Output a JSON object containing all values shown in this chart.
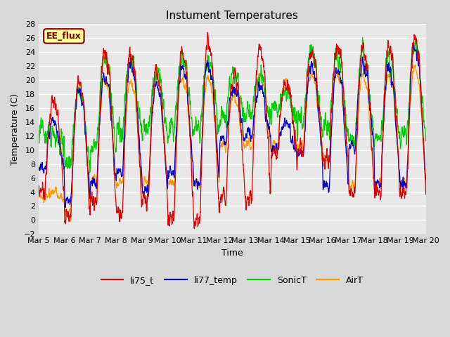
{
  "title": "Instument Temperatures",
  "xlabel": "Time",
  "ylabel": "Temperature (C)",
  "ylim": [
    -2,
    28
  ],
  "yticks": [
    -2,
    0,
    2,
    4,
    6,
    8,
    10,
    12,
    14,
    16,
    18,
    20,
    22,
    24,
    26,
    28
  ],
  "xtick_labels": [
    "Mar 5",
    "Mar 6",
    "Mar 7",
    "Mar 8",
    "Mar 9",
    "Mar 10",
    "Mar 11",
    "Mar 12",
    "Mar 13",
    "Mar 14",
    "Mar 15",
    "Mar 16",
    "Mar 17",
    "Mar 18",
    "Mar 19",
    "Mar 20"
  ],
  "annotation_text": "EE_flux",
  "annotation_bg": "#ffff99",
  "annotation_border": "#800000",
  "colors": {
    "li75_t": "#dd0000",
    "li77_temp": "#0000cc",
    "SonicT": "#00cc00",
    "AirT": "#ff9900"
  },
  "plot_bg": "#e8e8e8",
  "fig_bg": "#d8d8d8",
  "grid_color": "#ffffff",
  "title_fontsize": 11,
  "label_fontsize": 9,
  "tick_fontsize": 8
}
